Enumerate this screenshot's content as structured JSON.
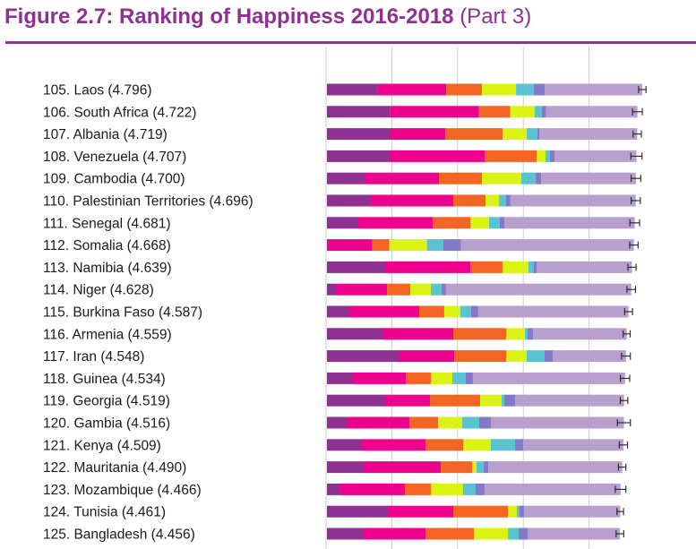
{
  "figure": {
    "title": "Figure 2.7: Ranking of Happiness 2016-2018",
    "subtitle": "(Part 3)"
  },
  "colors": {
    "title": "#8e3192",
    "rule": "#8e3192",
    "segments": [
      "#8e3192",
      "#ec008c",
      "#f26522",
      "#dbf215",
      "#59c3d0",
      "#8279c8",
      "#b89fce"
    ],
    "gridline": "#cccccc",
    "errorbar": "#222222"
  },
  "chart_data": {
    "type": "bar",
    "orientation": "horizontal",
    "stacked": true,
    "grid": true,
    "error_bars": true,
    "xlim": [
      0,
      4.9
    ],
    "categories": [
      "105. Laos (4.796)",
      "106. South Africa (4.722)",
      "107. Albania (4.719)",
      "108. Venezuela (4.707)",
      "109. Cambodia (4.700)",
      "110. Palestinian Territories (4.696)",
      "111. Senegal (4.681)",
      "112. Somalia (4.668)",
      "113. Namibia (4.639)",
      "114. Niger (4.628)",
      "115. Burkina Faso (4.587)",
      "116. Armenia (4.559)",
      "117. Iran (4.548)",
      "118. Guinea (4.534)",
      "119. Georgia (4.519)",
      "120. Gambia (4.516)",
      "121. Kenya (4.509)",
      "122. Mauritania (4.490)",
      "123. Mozambique (4.466)",
      "124. Tunisia (4.461)",
      "125. Bangladesh (4.456)"
    ],
    "totals": [
      4.796,
      4.722,
      4.719,
      4.707,
      4.7,
      4.696,
      4.681,
      4.668,
      4.639,
      4.628,
      4.587,
      4.559,
      4.548,
      4.534,
      4.519,
      4.516,
      4.509,
      4.49,
      4.466,
      4.461,
      4.456
    ],
    "series": [
      {
        "values": [
          0.764,
          0.963,
          0.954,
          0.954,
          0.572,
          0.654,
          0.477,
          0.0,
          0.872,
          0.136,
          0.327,
          0.858,
          1.09,
          0.395,
          0.872,
          0.313,
          0.518,
          0.559,
          0.204,
          0.94,
          0.559
        ]
      },
      {
        "values": [
          1.049,
          1.349,
          0.845,
          1.444,
          1.131,
          1.267,
          1.131,
          0.69,
          1.308,
          0.777,
          1.076,
          1.063,
          0.845,
          0.804,
          0.695,
          0.94,
          0.981,
          1.172,
          0.981,
          0.981,
          0.94
        ]
      },
      {
        "values": [
          0.545,
          0.477,
          0.872,
          0.79,
          0.654,
          0.49,
          0.572,
          0.259,
          0.49,
          0.354,
          0.381,
          0.804,
          0.79,
          0.381,
          0.763,
          0.436,
          0.572,
          0.477,
          0.395,
          0.831,
          0.736
        ]
      },
      {
        "values": [
          0.518,
          0.368,
          0.368,
          0.136,
          0.6,
          0.204,
          0.286,
          0.572,
          0.395,
          0.313,
          0.245,
          0.286,
          0.313,
          0.327,
          0.327,
          0.368,
          0.422,
          0.068,
          0.49,
          0.136,
          0.518
        ]
      },
      {
        "values": [
          0.272,
          0.109,
          0.163,
          0.068,
          0.218,
          0.109,
          0.163,
          0.245,
          0.082,
          0.163,
          0.163,
          0.041,
          0.272,
          0.204,
          0.041,
          0.259,
          0.368,
          0.109,
          0.191,
          0.041,
          0.163
        ]
      },
      {
        "values": [
          0.163,
          0.068,
          0.027,
          0.068,
          0.082,
          0.068,
          0.068,
          0.272,
          0.041,
          0.068,
          0.109,
          0.082,
          0.123,
          0.109,
          0.163,
          0.177,
          0.123,
          0.068,
          0.136,
          0.068,
          0.136
        ]
      },
      {
        "values": [
          1.485,
          1.388,
          1.49,
          1.247,
          1.443,
          1.904,
          1.984,
          2.63,
          1.451,
          2.817,
          2.286,
          1.425,
          1.115,
          2.314,
          1.658,
          2.023,
          1.525,
          2.037,
          2.069,
          1.464,
          1.404
        ]
      }
    ],
    "errors": [
      [
        4.739,
        4.853
      ],
      [
        4.647,
        4.797
      ],
      [
        4.656,
        4.782
      ],
      [
        4.622,
        4.792
      ],
      [
        4.627,
        4.773
      ],
      [
        4.626,
        4.766
      ],
      [
        4.607,
        4.755
      ],
      [
        4.604,
        4.732
      ],
      [
        4.577,
        4.701
      ],
      [
        4.563,
        4.693
      ],
      [
        4.527,
        4.647
      ],
      [
        4.506,
        4.612
      ],
      [
        4.481,
        4.615
      ],
      [
        4.463,
        4.605
      ],
      [
        4.462,
        4.576
      ],
      [
        4.417,
        4.615
      ],
      [
        4.446,
        4.572
      ],
      [
        4.433,
        4.547
      ],
      [
        4.385,
        4.547
      ],
      [
        4.411,
        4.511
      ],
      [
        4.398,
        4.514
      ]
    ]
  }
}
